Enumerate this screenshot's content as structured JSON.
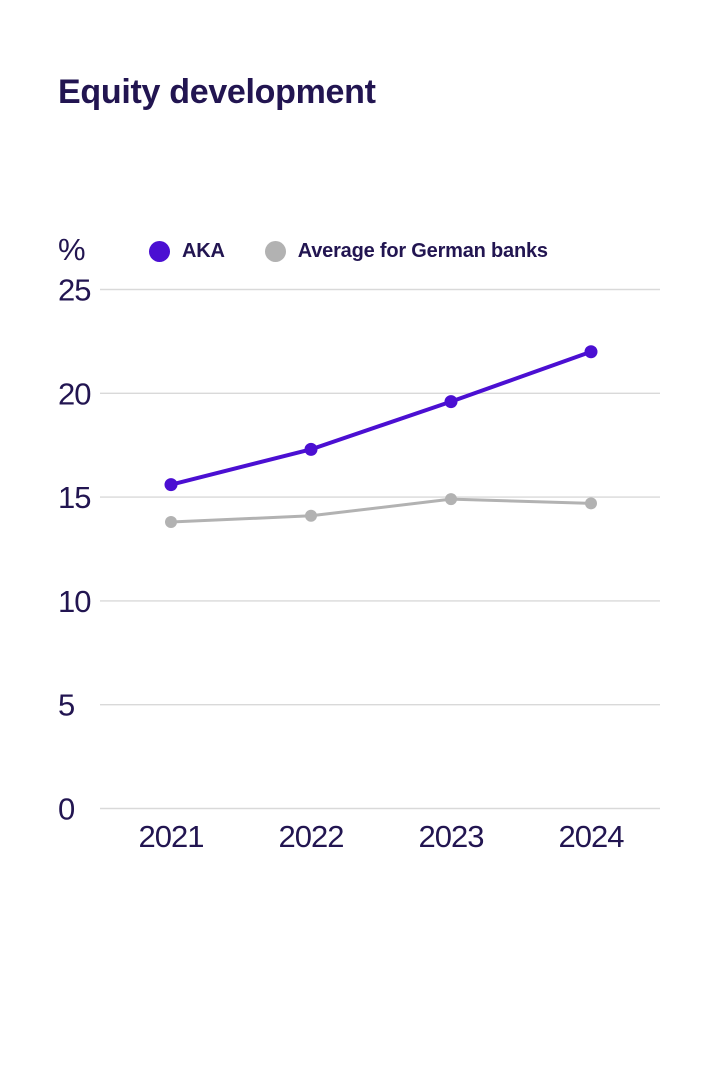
{
  "title": "Equity development",
  "chart_data": {
    "type": "line",
    "title": "Equity development",
    "unit_label": "%",
    "categories": [
      "2021",
      "2022",
      "2023",
      "2024"
    ],
    "series": [
      {
        "name": "AKA",
        "color": "#4b0fd2",
        "values": [
          15.6,
          17.3,
          19.6,
          22.0
        ]
      },
      {
        "name": "Average for German banks",
        "color": "#b2b2b2",
        "values": [
          13.8,
          14.1,
          14.9,
          14.7
        ]
      }
    ],
    "ylim": [
      0,
      25
    ],
    "yticks": [
      0,
      5,
      10,
      15,
      20,
      25
    ],
    "xlabel": "",
    "ylabel": "%",
    "grid": true,
    "legend_position": "top-left",
    "gridline_color": "#d9d9d9",
    "text_color": "#221551",
    "background": "#ffffff"
  }
}
